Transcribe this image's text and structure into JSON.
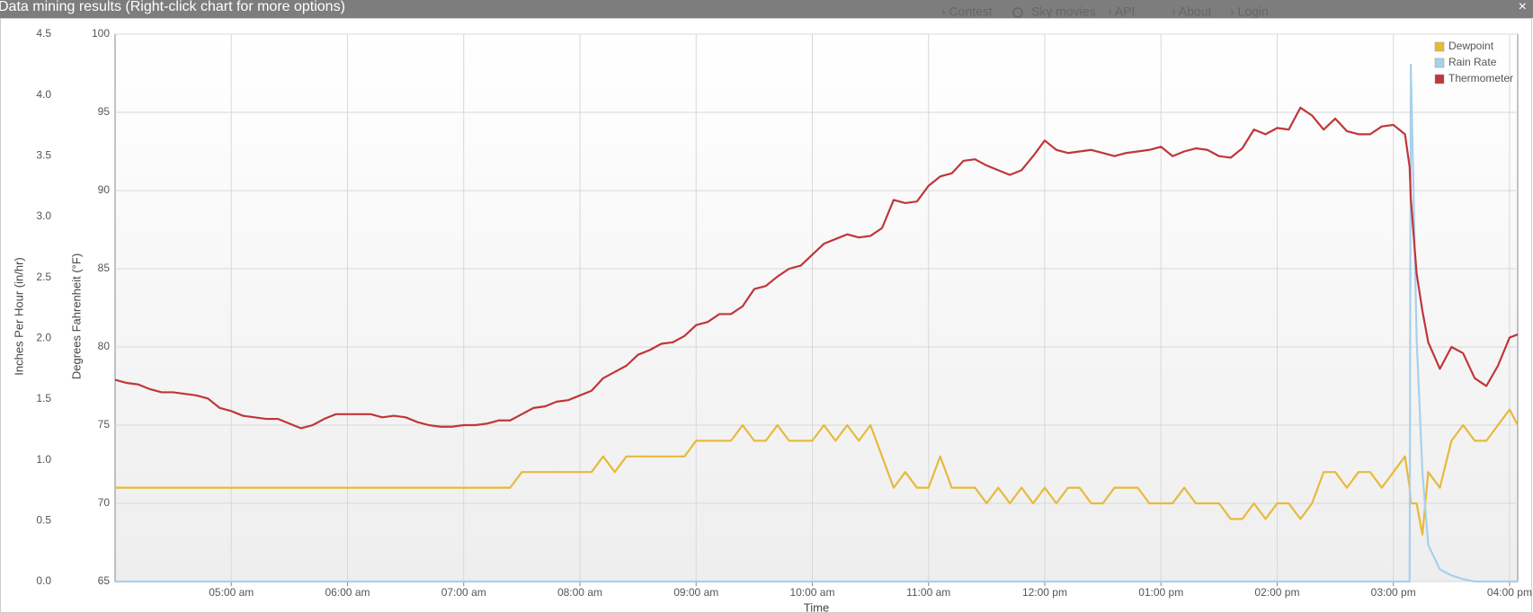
{
  "ui": {
    "dialog_title": "Data mining results (Right-click chart for more options)",
    "close": "×",
    "nav": [
      "› Contest",
      "Sky movies",
      "› API",
      "› About",
      "› Login"
    ]
  },
  "chart_data": {
    "type": "line",
    "x_label": "Time",
    "y_label": "Degrees Fahrenheit (°F)",
    "y2_label": "Inches Per Hour (in/hr)",
    "x": [
      4.0,
      4.1,
      4.2,
      4.3,
      4.4,
      4.5,
      4.6,
      4.7,
      4.8,
      4.9,
      5.0,
      5.1,
      5.2,
      5.3,
      5.4,
      5.5,
      5.6,
      5.7,
      5.8,
      5.9,
      6.0,
      6.1,
      6.2,
      6.3,
      6.4,
      6.5,
      6.6,
      6.7,
      6.8,
      6.9,
      7.0,
      7.1,
      7.2,
      7.3,
      7.4,
      7.5,
      7.6,
      7.7,
      7.8,
      7.9,
      8.0,
      8.1,
      8.2,
      8.3,
      8.4,
      8.5,
      8.6,
      8.7,
      8.8,
      8.9,
      9.0,
      9.1,
      9.2,
      9.3,
      9.4,
      9.5,
      9.6,
      9.7,
      9.8,
      9.9,
      10.0,
      10.1,
      10.2,
      10.3,
      10.4,
      10.5,
      10.6,
      10.7,
      10.8,
      10.9,
      11.0,
      11.1,
      11.2,
      11.3,
      11.4,
      11.5,
      11.6,
      11.7,
      11.8,
      11.9,
      12.0,
      12.1,
      12.2,
      12.3,
      12.4,
      12.5,
      12.6,
      12.7,
      12.8,
      12.9,
      13.0,
      13.1,
      13.2,
      13.3,
      13.4,
      13.5,
      13.6,
      13.7,
      13.8,
      13.9,
      14.0,
      14.1,
      14.2,
      14.3,
      14.4,
      14.5,
      14.6,
      14.7,
      14.8,
      14.9,
      15.0,
      15.1,
      15.14,
      15.15,
      15.2,
      15.25,
      15.3,
      15.4,
      15.5,
      15.6,
      15.7,
      15.8,
      15.9,
      16.0,
      16.07
    ],
    "series": [
      {
        "name": "Dewpoint",
        "color": "#e8b93a",
        "axis": "y",
        "values": [
          71,
          71,
          71,
          71,
          71,
          71,
          71,
          71,
          71,
          71,
          71,
          71,
          71,
          71,
          71,
          71,
          71,
          71,
          71,
          71,
          71,
          71,
          71,
          71,
          71,
          71,
          71,
          71,
          71,
          71,
          71,
          71,
          71,
          71,
          71,
          72,
          72,
          72,
          72,
          72,
          72,
          72,
          73,
          72,
          73,
          73,
          73,
          73,
          73,
          73,
          74,
          74,
          74,
          74,
          75,
          74,
          74,
          75,
          74,
          74,
          74,
          75,
          74,
          75,
          74,
          75,
          73,
          71,
          72,
          71,
          71,
          73,
          71,
          71,
          71,
          70,
          71,
          70,
          71,
          70,
          71,
          70,
          71,
          71,
          70,
          70,
          71,
          71,
          71,
          70,
          70,
          70,
          71,
          70,
          70,
          70,
          69,
          69,
          70,
          69,
          70,
          70,
          69,
          70,
          72,
          72,
          71,
          72,
          72,
          71,
          72,
          73,
          71,
          70,
          70,
          68,
          72,
          71,
          74,
          75,
          74,
          74,
          75,
          76,
          75
        ]
      },
      {
        "name": "Rain Rate",
        "color": "#a8d0ec",
        "axis": "y2",
        "values": [
          0,
          0,
          0,
          0,
          0,
          0,
          0,
          0,
          0,
          0,
          0,
          0,
          0,
          0,
          0,
          0,
          0,
          0,
          0,
          0,
          0,
          0,
          0,
          0,
          0,
          0,
          0,
          0,
          0,
          0,
          0,
          0,
          0,
          0,
          0,
          0,
          0,
          0,
          0,
          0,
          0,
          0,
          0,
          0,
          0,
          0,
          0,
          0,
          0,
          0,
          0,
          0,
          0,
          0,
          0,
          0,
          0,
          0,
          0,
          0,
          0,
          0,
          0,
          0,
          0,
          0,
          0,
          0,
          0,
          0,
          0,
          0,
          0,
          0,
          0,
          0,
          0,
          0,
          0,
          0,
          0,
          0,
          0,
          0,
          0,
          0,
          0,
          0,
          0,
          0,
          0,
          0,
          0,
          0,
          0,
          0,
          0,
          0,
          0,
          0,
          0,
          0,
          0,
          0,
          0,
          0,
          0,
          0,
          0,
          0,
          0,
          0,
          0,
          4.25,
          2.0,
          0.9,
          0.3,
          0.1,
          0.05,
          0.02,
          0,
          0,
          0,
          0,
          0
        ]
      },
      {
        "name": "Thermometer",
        "color": "#c0363a",
        "axis": "y",
        "values": [
          77.9,
          77.7,
          77.6,
          77.3,
          77.1,
          77.1,
          77.0,
          76.9,
          76.7,
          76.1,
          75.9,
          75.6,
          75.5,
          75.4,
          75.4,
          75.1,
          74.8,
          75.0,
          75.4,
          75.7,
          75.7,
          75.7,
          75.7,
          75.5,
          75.6,
          75.5,
          75.2,
          75.0,
          74.9,
          74.9,
          75.0,
          75.0,
          75.1,
          75.3,
          75.3,
          75.7,
          76.1,
          76.2,
          76.5,
          76.6,
          76.9,
          77.2,
          78.0,
          78.4,
          78.8,
          79.5,
          79.8,
          80.2,
          80.3,
          80.7,
          81.4,
          81.6,
          82.1,
          82.1,
          82.6,
          83.7,
          83.9,
          84.5,
          85.0,
          85.2,
          85.9,
          86.6,
          86.9,
          87.2,
          87.0,
          87.1,
          87.6,
          89.4,
          89.2,
          89.3,
          90.3,
          90.9,
          91.1,
          91.9,
          92.0,
          91.6,
          91.3,
          91.0,
          91.3,
          92.2,
          93.2,
          92.6,
          92.4,
          92.5,
          92.6,
          92.4,
          92.2,
          92.4,
          92.5,
          92.6,
          92.8,
          92.2,
          92.5,
          92.7,
          92.6,
          92.2,
          92.1,
          92.7,
          93.9,
          93.6,
          94.0,
          93.9,
          95.3,
          94.8,
          93.9,
          94.6,
          93.8,
          93.6,
          93.6,
          94.1,
          94.2,
          93.6,
          91.5,
          89.5,
          84.7,
          82.3,
          80.3,
          78.6,
          80.0,
          79.6,
          78.0,
          77.5,
          78.8,
          80.6,
          80.8
        ]
      }
    ],
    "xlim": [
      4.0,
      16.07
    ],
    "xticks": [
      {
        "value": 5,
        "label": "05:00 am"
      },
      {
        "value": 6,
        "label": "06:00 am"
      },
      {
        "value": 7,
        "label": "07:00 am"
      },
      {
        "value": 8,
        "label": "08:00 am"
      },
      {
        "value": 9,
        "label": "09:00 am"
      },
      {
        "value": 10,
        "label": "10:00 am"
      },
      {
        "value": 11,
        "label": "11:00 am"
      },
      {
        "value": 12,
        "label": "12:00 pm"
      },
      {
        "value": 13,
        "label": "01:00 pm"
      },
      {
        "value": 14,
        "label": "02:00 pm"
      },
      {
        "value": 15,
        "label": "03:00 pm"
      },
      {
        "value": 16,
        "label": "04:00 pm"
      }
    ],
    "ylim": [
      65,
      100
    ],
    "yticks": [
      65,
      70,
      75,
      80,
      85,
      90,
      95,
      100
    ],
    "y2lim": [
      0,
      4.5
    ],
    "y2ticks": [
      {
        "value": 0,
        "label": "0.0"
      },
      0.5,
      {
        "value": 1,
        "label": "1.0"
      },
      1.5,
      {
        "value": 2,
        "label": "2.0"
      },
      2.5,
      {
        "value": 3,
        "label": "3.0"
      },
      3.5,
      {
        "value": 4,
        "label": "4.0"
      },
      4.5
    ],
    "grid": true,
    "legend": "top-right"
  }
}
